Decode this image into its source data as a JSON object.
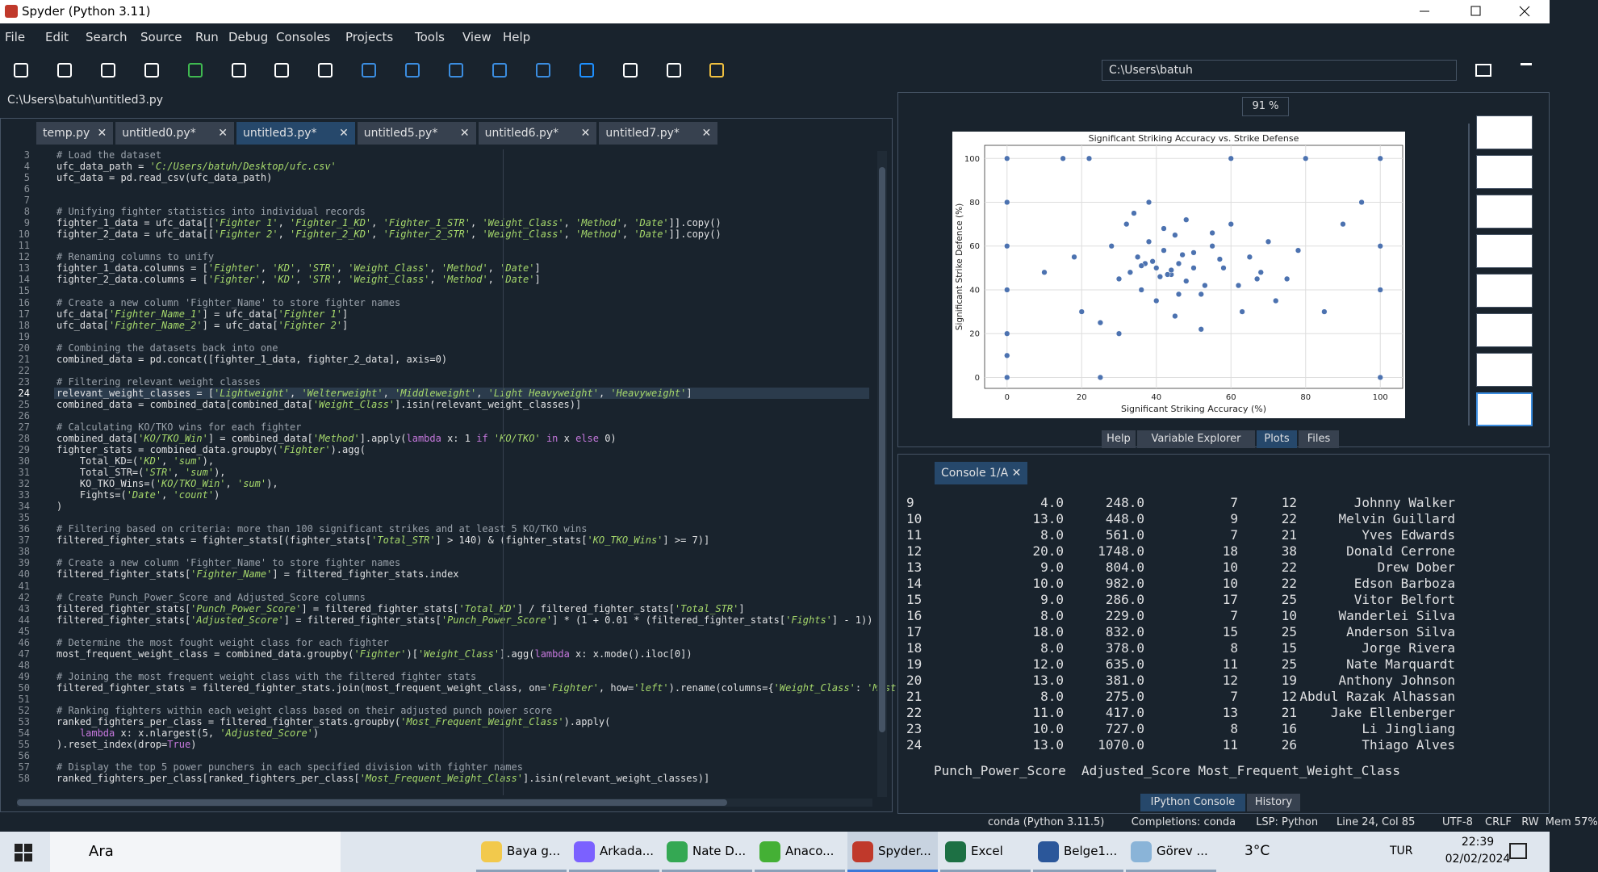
{
  "window": {
    "title": "Spyder (Python 3.11)"
  },
  "menu": [
    "File",
    "Edit",
    "Search",
    "Source",
    "Run",
    "Debug",
    "Consoles",
    "Projects",
    "Tools",
    "View",
    "Help"
  ],
  "toolbar": {
    "path": "C:\\Users\\batuh"
  },
  "editor": {
    "file_path": "C:\\Users\\batuh\\untitled3.py",
    "tabs": [
      {
        "label": "temp.py"
      },
      {
        "label": "untitled0.py*"
      },
      {
        "label": "untitled3.py*",
        "active": true
      },
      {
        "label": "untitled5.py*"
      },
      {
        "label": "untitled6.py*"
      },
      {
        "label": "untitled7.py*"
      }
    ],
    "lines": [
      {
        "n": 3,
        "text": "# Load the dataset"
      },
      {
        "n": 4,
        "text": "ufc_data_path = 'C:/Users/batuh/Desktop/ufc.csv'"
      },
      {
        "n": 5,
        "text": "ufc_data = pd.read_csv(ufc_data_path)"
      },
      {
        "n": 6
      },
      {
        "n": 7
      },
      {
        "n": 8,
        "text": "# Unifying fighter statistics into individual records"
      },
      {
        "n": 9,
        "text": "fighter_1_data = ufc_data[['Fighter 1', 'Fighter_1_KD', 'Fighter_1_STR', 'Weight_Class', 'Method', 'Date']].copy()"
      },
      {
        "n": 10,
        "text": "fighter_2_data = ufc_data[['Fighter 2', 'Fighter_2_KD', 'Fighter_2_STR', 'Weight_Class', 'Method', 'Date']].copy()"
      },
      {
        "n": 11
      },
      {
        "n": 12,
        "text": "# Renaming columns to unify"
      },
      {
        "n": 13,
        "text": "fighter_1_data.columns = ['Fighter', 'KD', 'STR', 'Weight_Class', 'Method', 'Date']"
      },
      {
        "n": 14,
        "text": "fighter_2_data.columns = ['Fighter', 'KD', 'STR', 'Weight_Class', 'Method', 'Date']"
      },
      {
        "n": 15
      },
      {
        "n": 16,
        "text": "# Create a new column 'Fighter_Name' to store fighter names"
      },
      {
        "n": 17,
        "text": "ufc_data['Fighter_Name_1'] = ufc_data['Fighter 1']"
      },
      {
        "n": 18,
        "text": "ufc_data['Fighter_Name_2'] = ufc_data['Fighter 2']"
      },
      {
        "n": 19
      },
      {
        "n": 20,
        "text": "# Combining the datasets back into one"
      },
      {
        "n": 21,
        "text": "combined_data = pd.concat([fighter_1_data, fighter_2_data], axis=0)"
      },
      {
        "n": 22
      },
      {
        "n": 23,
        "text": "# Filtering relevant weight classes"
      },
      {
        "n": 24,
        "text": "relevant_weight_classes = ['Lightweight', 'Welterweight', 'Middleweight', 'Light Heavyweight', 'Heavyweight']",
        "current": true
      },
      {
        "n": 25,
        "text": "combined_data = combined_data[combined_data['Weight_Class'].isin(relevant_weight_classes)]"
      },
      {
        "n": 26
      },
      {
        "n": 27,
        "text": "# Calculating KO/TKO wins for each fighter"
      },
      {
        "n": 28,
        "text": "combined_data['KO/TKO_Win'] = combined_data['Method'].apply(lambda x: 1 if 'KO/TKO' in x else 0)"
      },
      {
        "n": 29,
        "text": "fighter_stats = combined_data.groupby('Fighter').agg("
      },
      {
        "n": 30,
        "text": "    Total_KD=('KD', 'sum'),"
      },
      {
        "n": 31,
        "text": "    Total_STR=('STR', 'sum'),"
      },
      {
        "n": 32,
        "text": "    KO_TKO_Wins=('KO/TKO_Win', 'sum'),"
      },
      {
        "n": 33,
        "text": "    Fights=('Date', 'count')"
      },
      {
        "n": 34,
        "text": ")"
      },
      {
        "n": 35
      },
      {
        "n": 36,
        "text": "# Filtering based on criteria: more than 100 significant strikes and at least 5 KO/TKO wins"
      },
      {
        "n": 37,
        "text": "filtered_fighter_stats = fighter_stats[(fighter_stats['Total_STR'] > 140) & (fighter_stats['KO_TKO_Wins'] >= 7)]"
      },
      {
        "n": 38
      },
      {
        "n": 39,
        "text": "# Create a new column 'Fighter_Name' to store fighter names"
      },
      {
        "n": 40,
        "text": "filtered_fighter_stats['Fighter_Name'] = filtered_fighter_stats.index"
      },
      {
        "n": 41
      },
      {
        "n": 42,
        "text": "# Create Punch_Power_Score and Adjusted_Score columns"
      },
      {
        "n": 43,
        "text": "filtered_fighter_stats['Punch_Power_Score'] = filtered_fighter_stats['Total_KD'] / filtered_fighter_stats['Total_STR']"
      },
      {
        "n": 44,
        "text": "filtered_fighter_stats['Adjusted_Score'] = filtered_fighter_stats['Punch_Power_Score'] * (1 + 0.01 * (filtered_fighter_stats['Fights'] - 1))"
      },
      {
        "n": 45
      },
      {
        "n": 46,
        "text": "# Determine the most fought weight class for each fighter"
      },
      {
        "n": 47,
        "text": "most_frequent_weight_class = combined_data.groupby('Fighter')['Weight_Class'].agg(lambda x: x.mode().iloc[0])"
      },
      {
        "n": 48
      },
      {
        "n": 49,
        "text": "# Joining the most frequent weight class with the filtered fighter stats"
      },
      {
        "n": 50,
        "text": "filtered_fighter_stats = filtered_fighter_stats.join(most_frequent_weight_class, on='Fighter', how='left').rename(columns={'Weight_Class': 'Most"
      },
      {
        "n": 51
      },
      {
        "n": 52,
        "text": "# Ranking fighters within each weight class based on their adjusted punch power score"
      },
      {
        "n": 53,
        "text": "ranked_fighters_per_class = filtered_fighter_stats.groupby('Most_Frequent_Weight_Class').apply("
      },
      {
        "n": 54,
        "text": "    lambda x: x.nlargest(5, 'Adjusted_Score')"
      },
      {
        "n": 55,
        "text": ").reset_index(drop=True)"
      },
      {
        "n": 56
      },
      {
        "n": 57,
        "text": "# Display the top 5 power punchers in each specified division with fighter names"
      },
      {
        "n": 58,
        "text": "ranked_fighters_per_class[ranked_fighters_per_class['Most_Frequent_Weight_Class'].isin(relevant_weight_classes)]"
      }
    ]
  },
  "plots": {
    "zoom": "91 %",
    "chart_data": {
      "type": "scatter",
      "title": "Significant Striking Accuracy vs. Strike Defense",
      "x_label": "Significant Striking Accuracy (%)",
      "y_label": "Significant Strike Defence (%)",
      "color": "#4c72b0",
      "grid": true,
      "xlim": [
        -6,
        106
      ],
      "ylim": [
        -5,
        106
      ],
      "xticks": [
        0,
        20,
        40,
        60,
        80,
        100
      ],
      "yticks": [
        0,
        20,
        40,
        60,
        80,
        100
      ],
      "x": [
        0,
        0,
        0,
        0,
        0,
        0,
        0,
        100,
        100,
        100,
        100,
        15,
        22,
        25,
        60,
        80,
        28,
        30,
        32,
        35,
        36,
        38,
        40,
        40,
        42,
        44,
        45,
        46,
        48,
        50,
        52,
        55,
        58,
        62,
        65,
        68,
        70,
        72,
        75,
        78,
        85,
        90,
        20,
        18,
        25,
        30,
        34,
        38,
        42,
        45,
        48,
        52,
        55,
        60,
        63,
        67,
        33,
        37,
        41,
        47,
        50,
        53,
        57,
        44,
        39,
        43,
        36,
        46,
        10,
        95
      ],
      "values": [
        100,
        80,
        60,
        40,
        20,
        10,
        0,
        0,
        100,
        60,
        40,
        100,
        100,
        0,
        100,
        100,
        60,
        45,
        70,
        55,
        40,
        62,
        50,
        35,
        58,
        47,
        65,
        52,
        44,
        57,
        38,
        60,
        50,
        42,
        55,
        48,
        62,
        35,
        45,
        58,
        30,
        70,
        30,
        55,
        25,
        20,
        75,
        80,
        68,
        28,
        72,
        22,
        66,
        70,
        30,
        45,
        48,
        52,
        46,
        56,
        50,
        42,
        54,
        49,
        53,
        47,
        51,
        38,
        48,
        80
      ]
    }
  },
  "pane_tabs": [
    {
      "label": "Help"
    },
    {
      "label": "Variable Explorer"
    },
    {
      "label": "Plots",
      "active": true
    },
    {
      "label": "Files"
    }
  ],
  "console": {
    "tab": "Console 1/A",
    "rows": [
      [
        "9",
        "4.0",
        "248.0",
        "7",
        "12",
        "Johnny Walker"
      ],
      [
        "10",
        "13.0",
        "448.0",
        "9",
        "22",
        "Melvin Guillard"
      ],
      [
        "11",
        "8.0",
        "561.0",
        "7",
        "21",
        "Yves Edwards"
      ],
      [
        "12",
        "20.0",
        "1748.0",
        "18",
        "38",
        "Donald Cerrone"
      ],
      [
        "13",
        "9.0",
        "804.0",
        "10",
        "22",
        "Drew Dober"
      ],
      [
        "14",
        "10.0",
        "982.0",
        "10",
        "22",
        "Edson Barboza"
      ],
      [
        "15",
        "9.0",
        "286.0",
        "17",
        "25",
        "Vitor Belfort"
      ],
      [
        "16",
        "8.0",
        "229.0",
        "7",
        "10",
        "Wanderlei Silva"
      ],
      [
        "17",
        "18.0",
        "832.0",
        "15",
        "25",
        "Anderson Silva"
      ],
      [
        "18",
        "8.0",
        "378.0",
        "8",
        "15",
        "Jorge Rivera"
      ],
      [
        "19",
        "12.0",
        "635.0",
        "11",
        "25",
        "Nate Marquardt"
      ],
      [
        "20",
        "13.0",
        "381.0",
        "12",
        "19",
        "Anthony Johnson"
      ],
      [
        "21",
        "8.0",
        "275.0",
        "7",
        "12",
        "Abdul Razak Alhassan"
      ],
      [
        "22",
        "11.0",
        "417.0",
        "13",
        "21",
        "Jake Ellenberger"
      ],
      [
        "23",
        "10.0",
        "727.0",
        "8",
        "16",
        "Li Jingliang"
      ],
      [
        "24",
        "13.0",
        "1070.0",
        "11",
        "26",
        "Thiago Alves"
      ]
    ],
    "footer": "Punch_Power_Score  Adjusted_Score Most_Frequent_Weight_Class",
    "tabs": [
      {
        "label": "IPython Console",
        "active": true
      },
      {
        "label": "History"
      }
    ]
  },
  "status": [
    "conda (Python 3.11.5)",
    "Completions: conda",
    "LSP: Python",
    "Line 24, Col 85",
    "UTF-8",
    "CRLF",
    "RW",
    "Mem 57%"
  ],
  "taskbar": {
    "search": "Ara",
    "apps": [
      {
        "label": "Baya g...",
        "color": "#f2c94c"
      },
      {
        "label": "Arkada...",
        "color": "#7b61ff"
      },
      {
        "label": "Nate D...",
        "color": "#34a853"
      },
      {
        "label": "Anaco...",
        "color": "#44b035"
      },
      {
        "label": "Spyder...",
        "color": "#c0392b",
        "active": true
      },
      {
        "label": "Excel",
        "color": "#1d7044"
      },
      {
        "label": "Belge1...",
        "color": "#2b579a"
      },
      {
        "label": "Görev ...",
        "color": "#8ab4d8"
      }
    ],
    "weather": "3°C",
    "language": "TUR",
    "time": "22:39",
    "date": "02/02/2024"
  }
}
